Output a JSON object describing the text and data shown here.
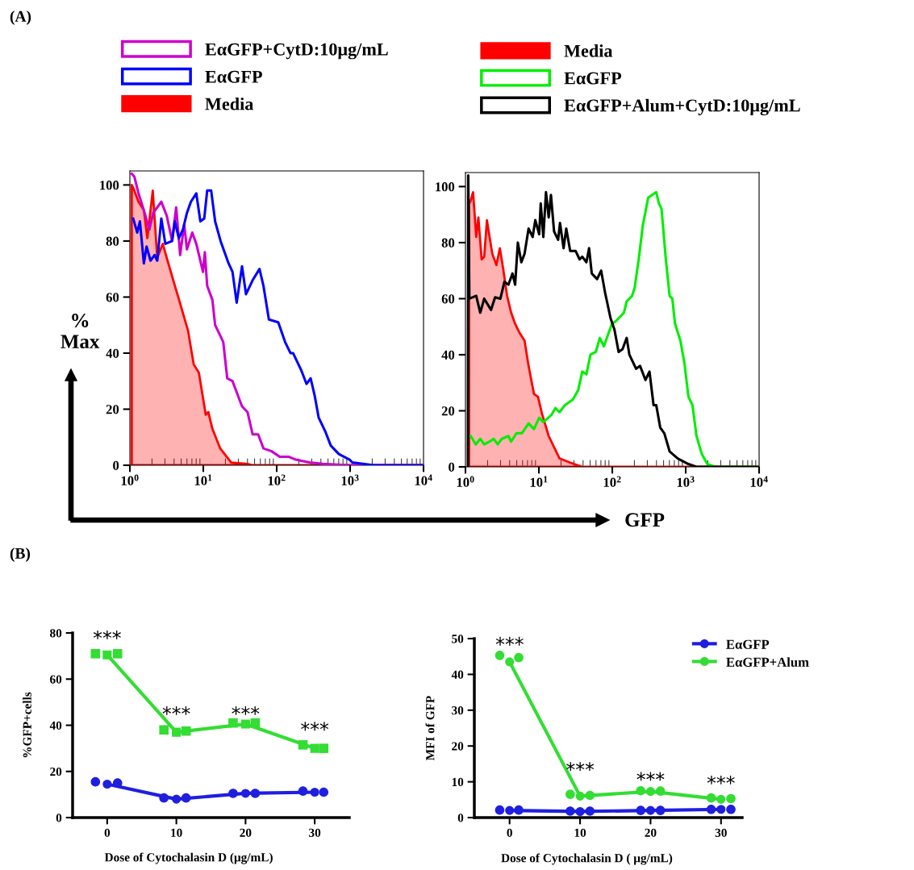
{
  "chart_data": [
    {
      "type": "line",
      "ylabel": "%\nMax",
      "log": "x",
      "xlim": [
        1,
        10000
      ],
      "ylim": [
        0,
        105
      ],
      "xticks": [
        {
          "value": 1,
          "label": "10$^{0}$"
        },
        {
          "value": 10,
          "label": "10$^{1}$"
        },
        {
          "value": 100,
          "label": "10$^{2}$"
        },
        {
          "value": 1000,
          "label": "10$^{3}$"
        },
        {
          "value": 10000,
          "label": "10$^{4}$"
        }
      ],
      "yticks": [
        0,
        20,
        40,
        60,
        80,
        100
      ],
      "legend": "top",
      "annotations": [
        "(A)"
      ],
      "series": [
        {
          "name": "EαGFP+CytD:10μg/mL",
          "color": "#cc00cc",
          "x": [
            1.06,
            1.15,
            1.31,
            1.55,
            1.84,
            2.08,
            2.68,
            3.18,
            3.76,
            4.27,
            4.84,
            5.5,
            5.98,
            7.08,
            8.03,
            9.9,
            10.5,
            11.3,
            13.3,
            14.5,
            18.7,
            21.2,
            25,
            33.7,
            40,
            47,
            55.9,
            66,
            85,
            110,
            147,
            182,
            277,
            423,
            984,
            10000
          ],
          "values": [
            104,
            103,
            97,
            91,
            84,
            90,
            94,
            89,
            80,
            92,
            75,
            86,
            77,
            83,
            79,
            69,
            76,
            64,
            59,
            50,
            44,
            31,
            30,
            21,
            19,
            11,
            11,
            6,
            5,
            3,
            3,
            2,
            1,
            0.5,
            0,
            0
          ]
        },
        {
          "name": "EαGFP",
          "color": "#0000ff",
          "x": [
            1.11,
            1.26,
            1.37,
            1.55,
            1.69,
            1.91,
            2.17,
            2.36,
            2.68,
            3.04,
            3.76,
            4.09,
            4.64,
            5.27,
            5.98,
            6.78,
            8.03,
            9.12,
            10.3,
            11.3,
            12.8,
            14.5,
            17.2,
            22.1,
            25,
            28.5,
            33.7,
            38.2,
            47,
            58.3,
            66,
            78.3,
            105,
            130,
            154,
            167,
            215,
            255,
            290,
            328,
            373,
            460,
            545,
            702,
            984,
            1069,
            1500,
            2100,
            10000
          ],
          "values": [
            88,
            83,
            87,
            72,
            78,
            73,
            75,
            73,
            88,
            79,
            80,
            87,
            81,
            84,
            90,
            94,
            97,
            87,
            88,
            98,
            98,
            87,
            80,
            72,
            69,
            58,
            71,
            61,
            66,
            70,
            64,
            52,
            51,
            44,
            40,
            40,
            34,
            29,
            31,
            25,
            17,
            12,
            7,
            4,
            2,
            1,
            0.5,
            0,
            0
          ]
        },
        {
          "name": "Media",
          "type": "area",
          "color": "#ff0000",
          "x": [
            1.06,
            1.11,
            1.31,
            1.55,
            1.73,
            2.05,
            2.36,
            2.8,
            3.18,
            3.9,
            4.8,
            6.2,
            7.4,
            8.7,
            10.8,
            11.7,
            13.3,
            17,
            24,
            40,
            47,
            10000
          ],
          "values": [
            100,
            99,
            94,
            91,
            81,
            98,
            74,
            79,
            74,
            66,
            58,
            48,
            36,
            33,
            18,
            19,
            13,
            6,
            1,
            0.5,
            0,
            0
          ]
        }
      ]
    },
    {
      "type": "line",
      "xlabel": "GFP",
      "log": "x",
      "xlim": [
        1,
        10000
      ],
      "ylim": [
        0,
        105
      ],
      "xticks": [
        {
          "value": 1,
          "label": "10$^{0}$"
        },
        {
          "value": 10,
          "label": "10$^{1}$"
        },
        {
          "value": 100,
          "label": "10$^{2}$"
        },
        {
          "value": 1000,
          "label": "10$^{3}$"
        },
        {
          "value": 10000,
          "label": "10$^{4}$"
        }
      ],
      "yticks": [
        0,
        20,
        40,
        60,
        80,
        100
      ],
      "legend": "top",
      "series": [
        {
          "name": "Media",
          "type": "area",
          "color": "#ff0000",
          "x": [
            1.12,
            1.16,
            1.27,
            1.4,
            1.5,
            1.66,
            1.8,
            1.96,
            2.13,
            2.32,
            2.64,
            2.94,
            3.25,
            3.69,
            4.19,
            4.75,
            5.4,
            6.38,
            7.24,
            8.57,
            9.73,
            11,
            13.6,
            19.1,
            26.7,
            39,
            10000
          ],
          "values": [
            94,
            94.5,
            98,
            82,
            89,
            74,
            75,
            88,
            82,
            76,
            72,
            78,
            71,
            61,
            55,
            51,
            48,
            45,
            36,
            26,
            25,
            19,
            11,
            3,
            1.5,
            0,
            0
          ]
        },
        {
          "name": "EαGFP",
          "color": "#00ee00",
          "x": [
            1.18,
            1.38,
            1.59,
            1.8,
            2.13,
            2.42,
            2.75,
            3.12,
            3.85,
            4.19,
            4.96,
            5.87,
            7.24,
            8.57,
            10.1,
            11.5,
            14.8,
            16.8,
            19.1,
            22.6,
            29.1,
            34.4,
            39,
            44.4,
            50.3,
            59.6,
            67.6,
            76.7,
            98.7,
            112,
            144,
            157,
            186,
            202,
            229,
            260,
            308,
            349,
            397,
            431,
            469,
            532,
            604,
            657,
            716,
            847,
            961,
            1090,
            1237,
            1403,
            1660,
            1967,
            2530,
            10000
          ],
          "values": [
            11,
            8,
            10,
            8,
            9,
            10,
            8,
            10,
            11,
            9,
            12,
            12,
            15.5,
            13.5,
            17.5,
            16,
            18.5,
            21,
            19.5,
            22,
            24,
            27.5,
            34,
            33,
            40,
            41,
            46,
            43,
            51,
            52,
            55,
            59,
            61,
            64,
            74,
            86,
            96,
            97,
            98,
            94,
            92,
            75,
            61,
            60,
            51,
            45,
            37,
            25,
            22,
            11,
            4.5,
            1,
            0,
            0
          ]
        },
        {
          "name": "EαGFP+Alum+CytD:10μg/mL",
          "color": "#000000",
          "x": [
            1.08,
            1.09,
            1.13,
            1.4,
            1.59,
            1.8,
            2.23,
            2.53,
            2.99,
            3.39,
            3.85,
            4.37,
            4.75,
            5.17,
            5.77,
            6.38,
            7.24,
            8.22,
            8.94,
            10.1,
            10.6,
            11.5,
            12.5,
            13.6,
            14.6,
            16.1,
            18.3,
            19.4,
            21.7,
            23.6,
            26.7,
            31.7,
            35.9,
            39,
            44.4,
            48.3,
            52.5,
            62.1,
            70.5,
            80,
            94.7,
            107,
            122,
            138,
            157,
            171,
            211,
            239,
            283,
            321,
            365,
            397,
            450,
            511,
            604,
            778,
            1090,
            1400,
            10000
          ],
          "values": [
            0,
            104,
            60,
            61,
            55,
            60,
            56,
            60.5,
            60,
            66,
            65,
            69,
            65,
            80,
            73,
            76,
            85,
            82,
            88,
            83,
            94,
            82,
            98,
            89,
            97,
            84,
            81,
            87,
            78,
            85,
            77,
            77,
            74,
            75,
            73,
            78,
            69,
            67,
            70,
            62,
            53,
            49,
            41,
            42,
            46,
            40,
            35,
            36,
            31,
            34,
            22,
            22,
            14,
            12,
            5.5,
            3,
            1,
            0,
            0
          ]
        }
      ]
    },
    {
      "type": "line",
      "xlabel": "Dose of Cytochalasin D (μg/mL)",
      "ylabel": "%GFP+cells",
      "xlim": [
        -5,
        35
      ],
      "ylim": [
        0,
        80
      ],
      "xticks": [
        0,
        10,
        20,
        30
      ],
      "yticks": [
        0,
        20,
        40,
        60,
        80
      ],
      "annotations": [
        "(B)",
        "***",
        "***",
        "***",
        "***"
      ],
      "series": [
        {
          "color": "#33dd33",
          "marker": "square",
          "x": [
            0,
            10,
            20,
            30
          ],
          "values": [
            70.5,
            37,
            40.5,
            30
          ]
        },
        {
          "type": "scatter",
          "color": "#33dd33",
          "marker": "square",
          "x": [
            -1.7,
            1.5,
            8.2,
            11.4,
            18.2,
            21.4,
            28.3,
            31.3
          ],
          "values": [
            71,
            71,
            38,
            37.5,
            41,
            41,
            31.5,
            30
          ]
        },
        {
          "color": "#1f1fe0",
          "marker": "circle",
          "x": [
            0,
            10,
            20,
            30
          ],
          "values": [
            14.5,
            8,
            10.5,
            11
          ]
        },
        {
          "type": "scatter",
          "color": "#1f1fe0",
          "marker": "circle",
          "x": [
            -1.7,
            1.5,
            8.2,
            11.4,
            18.2,
            21.4,
            28.3,
            31.3
          ],
          "values": [
            15.5,
            15,
            8.5,
            8.5,
            10.5,
            10.5,
            11.5,
            11
          ]
        }
      ]
    },
    {
      "type": "line",
      "xlabel": "Dose of Cytochalasin D ( μg/mL)",
      "ylabel": "MFI of GFP",
      "xlim": [
        -5,
        33
      ],
      "ylim": [
        0,
        50
      ],
      "xticks": [
        0,
        10,
        20,
        30
      ],
      "yticks": [
        0,
        10,
        20,
        30,
        40,
        50
      ],
      "legend": "top right",
      "annotations": [
        "***",
        "***",
        "***",
        "***"
      ],
      "series": [
        {
          "name": "EαGFP",
          "color": "#1f1fe0",
          "marker": "circle",
          "x": [
            0,
            10,
            20,
            30
          ],
          "values": [
            2,
            1.7,
            2,
            2.3
          ]
        },
        {
          "type": "scatter",
          "color": "#1f1fe0",
          "marker": "circle",
          "x": [
            -1.4,
            1.3,
            8.6,
            11.4,
            18.6,
            21.4,
            28.6,
            31.4
          ],
          "values": [
            2.1,
            2.1,
            1.8,
            1.8,
            2,
            2,
            2.3,
            2.3
          ]
        },
        {
          "name": "EαGFP+Alum",
          "color": "#33dd33",
          "marker": "circle",
          "x": [
            0,
            10,
            20,
            30
          ],
          "values": [
            43.5,
            6,
            7.3,
            5.1
          ]
        },
        {
          "type": "scatter",
          "color": "#33dd33",
          "marker": "circle",
          "x": [
            -1.4,
            1.3,
            8.6,
            11.4,
            18.6,
            21.4,
            28.6,
            31.4
          ],
          "values": [
            45.3,
            44.7,
            6.5,
            6.2,
            7.5,
            7.4,
            5.5,
            5.3
          ]
        }
      ]
    }
  ]
}
